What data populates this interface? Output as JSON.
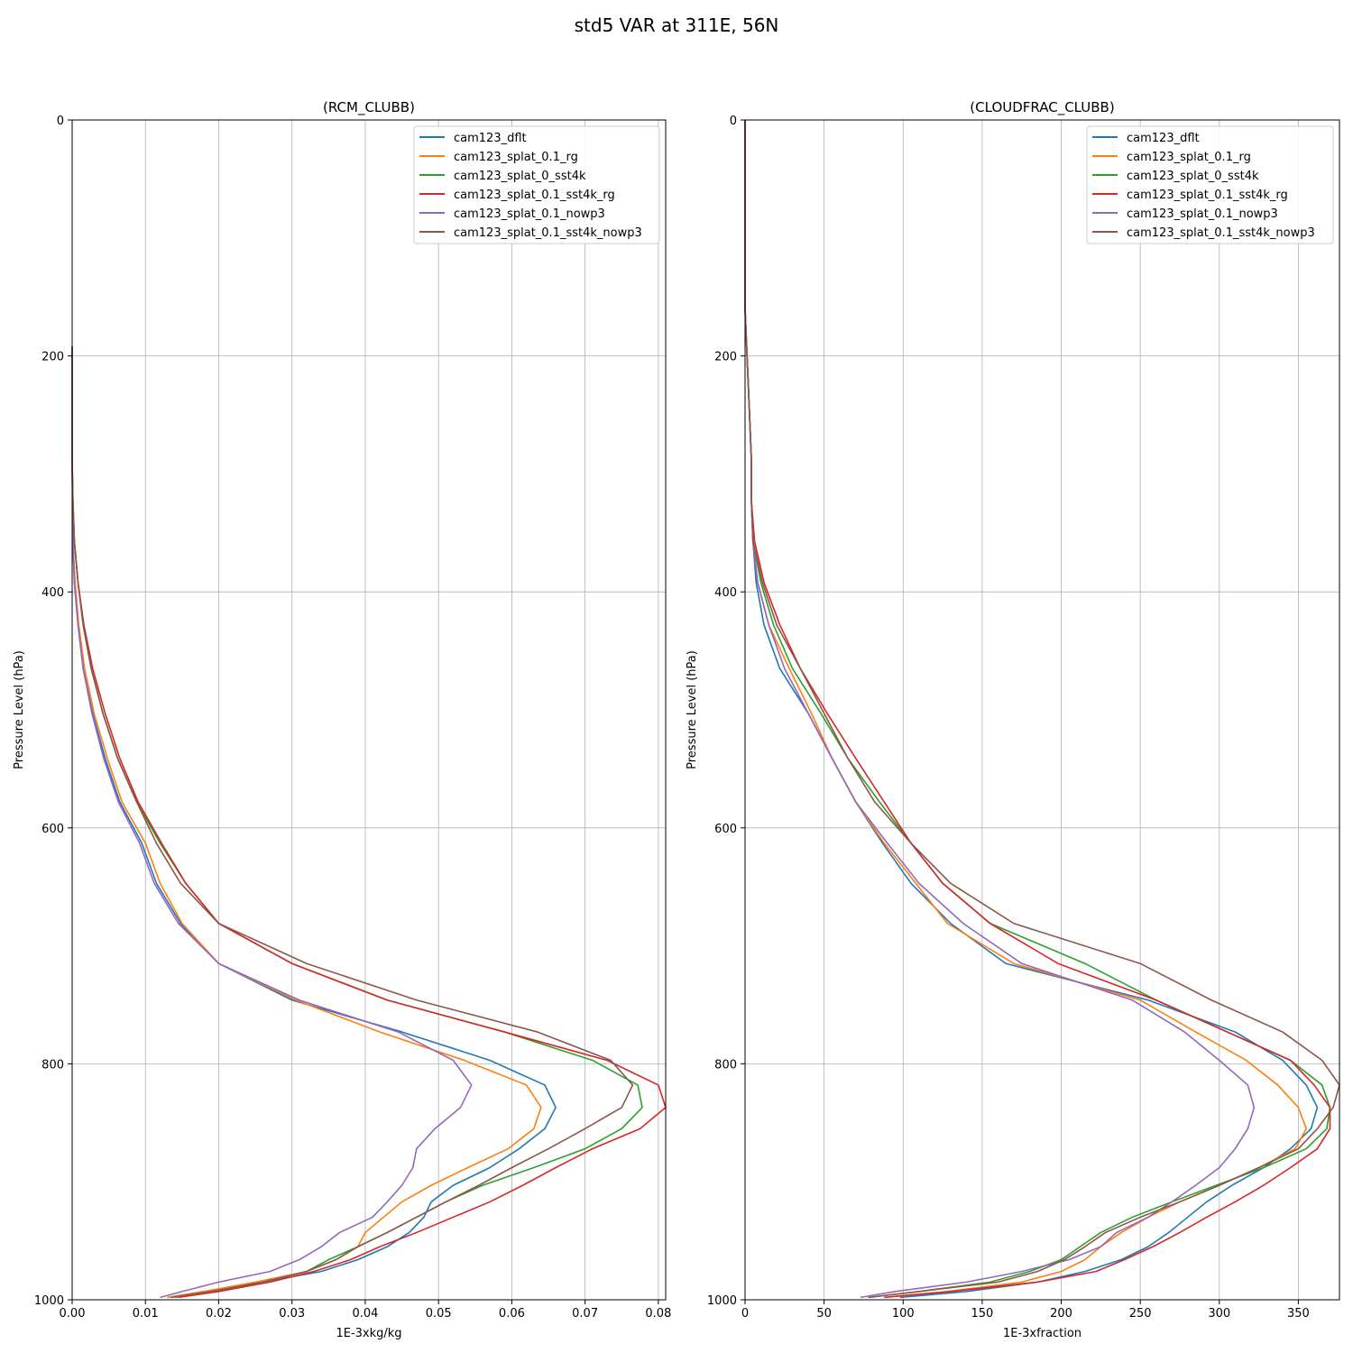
{
  "figure": {
    "title": "std5 VAR at 311E, 56N"
  },
  "chart_data": [
    {
      "type": "line",
      "title": "(RCM_CLUBB)",
      "xlabel": "1E-3xkg/kg",
      "ylabel": "Pressure Level (hPa)",
      "xlim": [
        0,
        0.081
      ],
      "ylim": [
        1000,
        0
      ],
      "y_inverted": true,
      "xticks": [
        0.0,
        0.01,
        0.02,
        0.03,
        0.04,
        0.05,
        0.06,
        0.07,
        0.08
      ],
      "xtick_labels": [
        "0.00",
        "0.01",
        "0.02",
        "0.03",
        "0.04",
        "0.05",
        "0.06",
        "0.07",
        "0.08"
      ],
      "yticks": [
        0,
        200,
        400,
        600,
        800,
        1000
      ],
      "ytick_labels": [
        "0",
        "200",
        "400",
        "600",
        "800",
        "1000"
      ],
      "grid": true,
      "legend": "top-right",
      "y": [
        998,
        993,
        985,
        976,
        966,
        955,
        943,
        930,
        917,
        903,
        888,
        872,
        855,
        837,
        818,
        797,
        773,
        746,
        715,
        681,
        647,
        613,
        578,
        541,
        503,
        465,
        428,
        392,
        357,
        322,
        288,
        255,
        223,
        192
      ],
      "series": [
        {
          "name": "cam123_dflt",
          "color": "#1f77b4",
          "values": [
            0.013,
            0.018,
            0.026,
            0.034,
            0.039,
            0.043,
            0.046,
            0.048,
            0.049,
            0.052,
            0.057,
            0.061,
            0.0645,
            0.066,
            0.0645,
            0.057,
            0.045,
            0.03,
            0.02,
            0.0148,
            0.0115,
            0.0095,
            0.0065,
            0.0045,
            0.0028,
            0.0015,
            0.0008,
            0.0003,
            0.0001,
            5e-05,
            0,
            0,
            0,
            0
          ]
        },
        {
          "name": "cam123_splat_0.1_rg",
          "color": "#ff7f0e",
          "values": [
            0.013,
            0.018,
            0.025,
            0.032,
            0.036,
            0.039,
            0.04,
            0.0425,
            0.045,
            0.049,
            0.054,
            0.0595,
            0.063,
            0.064,
            0.062,
            0.0535,
            0.042,
            0.0305,
            0.02,
            0.015,
            0.012,
            0.01,
            0.0068,
            0.0048,
            0.003,
            0.0017,
            0.0009,
            0.0004,
            0.0001,
            5e-05,
            0,
            0,
            0,
            0
          ]
        },
        {
          "name": "cam123_splat_0_sst4k",
          "color": "#2ca02c",
          "values": [
            0.014,
            0.019,
            0.026,
            0.032,
            0.035,
            0.039,
            0.043,
            0.047,
            0.051,
            0.056,
            0.063,
            0.07,
            0.075,
            0.0778,
            0.0772,
            0.071,
            0.059,
            0.043,
            0.03,
            0.02,
            0.0155,
            0.012,
            0.0088,
            0.0062,
            0.0042,
            0.0026,
            0.0015,
            0.0008,
            0.0003,
            0.0001,
            0,
            0,
            0,
            0
          ]
        },
        {
          "name": "cam123_splat_0.1_sst4k_rg",
          "color": "#d62728",
          "values": [
            0.0145,
            0.02,
            0.027,
            0.033,
            0.038,
            0.042,
            0.047,
            0.052,
            0.057,
            0.0615,
            0.066,
            0.071,
            0.0775,
            0.081,
            0.08,
            0.073,
            0.059,
            0.043,
            0.03,
            0.02,
            0.0155,
            0.0122,
            0.009,
            0.0065,
            0.0045,
            0.0028,
            0.0016,
            0.0008,
            0.0003,
            0.0001,
            0,
            0,
            0,
            0
          ]
        },
        {
          "name": "cam123_splat_0.1_nowp3",
          "color": "#9467bd",
          "values": [
            0.012,
            0.015,
            0.02,
            0.027,
            0.031,
            0.034,
            0.0365,
            0.041,
            0.043,
            0.045,
            0.0465,
            0.047,
            0.0495,
            0.053,
            0.0545,
            0.052,
            0.0445,
            0.031,
            0.02,
            0.0145,
            0.0112,
            0.0092,
            0.0063,
            0.0043,
            0.0027,
            0.0015,
            0.0008,
            0.0003,
            0.0001,
            5e-05,
            0,
            0,
            0,
            0
          ]
        },
        {
          "name": "cam123_splat_0.1_sst4k_nowp3",
          "color": "#8c564b",
          "values": [
            0.0135,
            0.019,
            0.026,
            0.032,
            0.036,
            0.039,
            0.043,
            0.047,
            0.051,
            0.0555,
            0.06,
            0.065,
            0.07,
            0.075,
            0.0765,
            0.0735,
            0.0635,
            0.047,
            0.032,
            0.02,
            0.0148,
            0.0115,
            0.0088,
            0.0062,
            0.0042,
            0.0026,
            0.0015,
            0.0008,
            0.0003,
            0.0001,
            0,
            0,
            0,
            0
          ]
        }
      ]
    },
    {
      "type": "line",
      "title": "(CLOUDFRAC_CLUBB)",
      "xlabel": "1E-3xfraction",
      "ylabel": "Pressure Level (hPa)",
      "xlim": [
        0,
        376
      ],
      "ylim": [
        1000,
        0
      ],
      "y_inverted": true,
      "xticks": [
        0,
        50,
        100,
        150,
        200,
        250,
        300,
        350
      ],
      "xtick_labels": [
        "0",
        "50",
        "100",
        "150",
        "200",
        "250",
        "300",
        "350"
      ],
      "yticks": [
        0,
        200,
        400,
        600,
        800,
        1000
      ],
      "ytick_labels": [
        "0",
        "200",
        "400",
        "600",
        "800",
        "1000"
      ],
      "grid": true,
      "legend": "top-right",
      "y": [
        998,
        993,
        985,
        976,
        966,
        955,
        943,
        930,
        917,
        903,
        888,
        872,
        855,
        837,
        818,
        797,
        773,
        746,
        715,
        681,
        647,
        613,
        578,
        541,
        503,
        465,
        428,
        392,
        357,
        322,
        288,
        255,
        223,
        192,
        160,
        0
      ],
      "series": [
        {
          "name": "cam123_dflt",
          "color": "#1f77b4",
          "values": [
            98,
            140,
            185,
            215,
            238,
            255,
            268,
            280,
            292,
            308,
            328,
            345,
            358,
            362,
            355,
            340,
            310,
            255,
            165,
            130,
            105,
            87,
            70,
            55,
            40,
            22,
            12,
            7,
            5,
            4,
            4,
            3,
            2,
            1,
            0,
            0
          ]
        },
        {
          "name": "cam123_splat_0.1_rg",
          "color": "#ff7f0e",
          "values": [
            88,
            128,
            175,
            200,
            215,
            225,
            238,
            255,
            275,
            300,
            325,
            348,
            355,
            350,
            337,
            317,
            285,
            250,
            170,
            128,
            108,
            88,
            70,
            55,
            42,
            28,
            15,
            8,
            5,
            4,
            4,
            3,
            2,
            1,
            0,
            0
          ]
        },
        {
          "name": "cam123_splat_0_sst4k",
          "color": "#2ca02c",
          "values": [
            78,
            110,
            155,
            180,
            200,
            212,
            225,
            245,
            270,
            298,
            328,
            355,
            368,
            370,
            365,
            345,
            305,
            260,
            215,
            155,
            125,
            105,
            85,
            65,
            48,
            30,
            18,
            10,
            5,
            4,
            4,
            3,
            2,
            1,
            0,
            0
          ]
        },
        {
          "name": "cam123_splat_0.1_sst4k_rg",
          "color": "#d62728",
          "values": [
            88,
            130,
            185,
            222,
            240,
            258,
            275,
            292,
            310,
            328,
            345,
            362,
            370,
            370,
            360,
            345,
            305,
            260,
            198,
            155,
            125,
            105,
            88,
            70,
            52,
            35,
            22,
            12,
            6,
            4,
            4,
            3,
            2,
            1,
            0,
            0
          ]
        },
        {
          "name": "cam123_splat_0.1_nowp3",
          "color": "#9467bd",
          "values": [
            73,
            95,
            140,
            175,
            205,
            225,
            235,
            255,
            270,
            285,
            300,
            310,
            318,
            322,
            318,
            300,
            278,
            245,
            175,
            138,
            110,
            90,
            70,
            55,
            40,
            25,
            15,
            8,
            5,
            4,
            4,
            3,
            2,
            1,
            0,
            0
          ]
        },
        {
          "name": "cam123_splat_0.1_sst4k_nowp3",
          "color": "#8c564b",
          "values": [
            78,
            110,
            160,
            185,
            202,
            215,
            228,
            250,
            275,
            300,
            325,
            350,
            362,
            372,
            376,
            365,
            340,
            295,
            250,
            170,
            130,
            105,
            82,
            65,
            50,
            35,
            20,
            11,
            5,
            4,
            4,
            3,
            2,
            1,
            0,
            0
          ]
        }
      ]
    }
  ]
}
